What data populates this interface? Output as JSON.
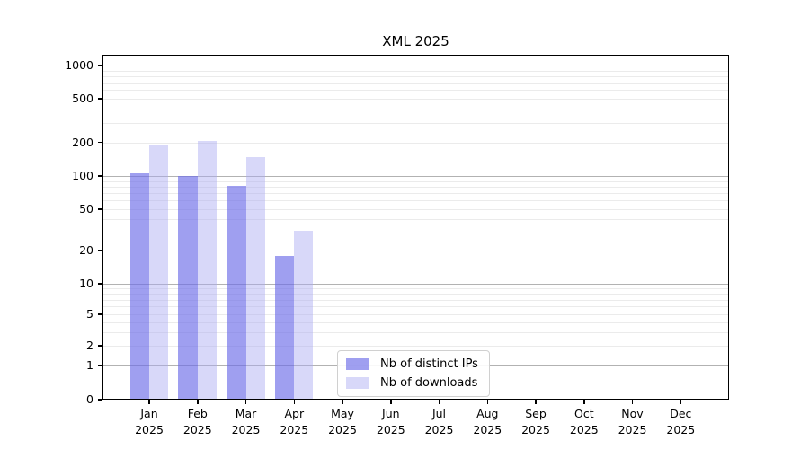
{
  "chart_data": {
    "type": "bar",
    "title": "XML 2025",
    "categories": [
      "Jan",
      "Feb",
      "Mar",
      "Apr",
      "May",
      "Jun",
      "Jul",
      "Aug",
      "Sep",
      "Oct",
      "Nov",
      "Dec"
    ],
    "category_year": "2025",
    "series": [
      {
        "name": "Nb of distinct IPs",
        "color": "#9f9fef",
        "color_rgba": "rgba(108,108,232,0.65)",
        "values": [
          105,
          100,
          82,
          18,
          0,
          0,
          0,
          0,
          0,
          0,
          0,
          0
        ]
      },
      {
        "name": "Nb of downloads",
        "color": "#d8d8f9",
        "color_rgba": "rgba(168,168,242,0.45)",
        "values": [
          190,
          205,
          147,
          31,
          0,
          0,
          0,
          0,
          0,
          0,
          0,
          0
        ]
      }
    ],
    "yscale": "symlog",
    "yticks": [
      0,
      1,
      2,
      5,
      10,
      20,
      50,
      100,
      200,
      500,
      1000
    ],
    "ylim": [
      0,
      1250
    ],
    "xlabel": "",
    "ylabel": "",
    "grid": true,
    "grid_minor": true,
    "legend_position": "inside-bottom-center"
  }
}
